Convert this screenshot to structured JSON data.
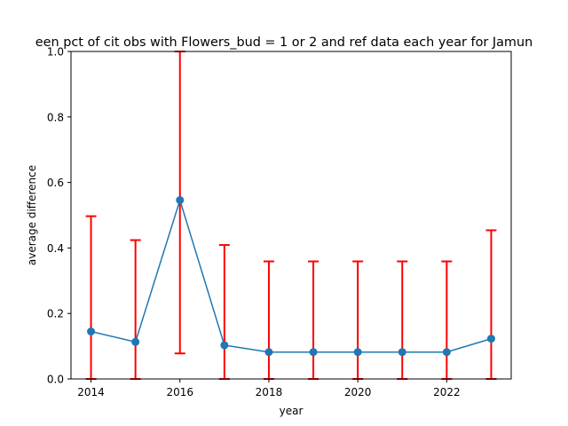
{
  "chart_data": {
    "type": "line",
    "title": "een pct of cit obs with Flowers_bud = 1 or 2 and ref data each year for Jamun",
    "xlabel": "year",
    "ylabel": "average difference",
    "xlim": [
      2013.55,
      2023.45
    ],
    "ylim": [
      0.0,
      1.0
    ],
    "xticks": [
      2014,
      2016,
      2018,
      2020,
      2022
    ],
    "yticks": [
      "0.0",
      "0.2",
      "0.4",
      "0.6",
      "0.8",
      "1.0"
    ],
    "ytick_values": [
      0.0,
      0.2,
      0.4,
      0.6,
      0.8,
      1.0
    ],
    "grid": false,
    "legend": "none",
    "series": [
      {
        "x": [
          2014,
          2015,
          2016,
          2017,
          2018,
          2019,
          2020,
          2021,
          2022,
          2023
        ],
        "values": [
          0.145,
          0.113,
          0.546,
          0.103,
          0.082,
          0.082,
          0.082,
          0.082,
          0.082,
          0.123
        ],
        "error_low": [
          0.0,
          0.0,
          0.078,
          0.0,
          0.0,
          0.0,
          0.0,
          0.0,
          0.0,
          0.0
        ],
        "error_high": [
          0.497,
          0.424,
          1.0,
          0.409,
          0.359,
          0.359,
          0.359,
          0.359,
          0.359,
          0.454
        ]
      }
    ],
    "colors": {
      "line": "#1f77b4",
      "errorbar": "#ff0000"
    }
  }
}
